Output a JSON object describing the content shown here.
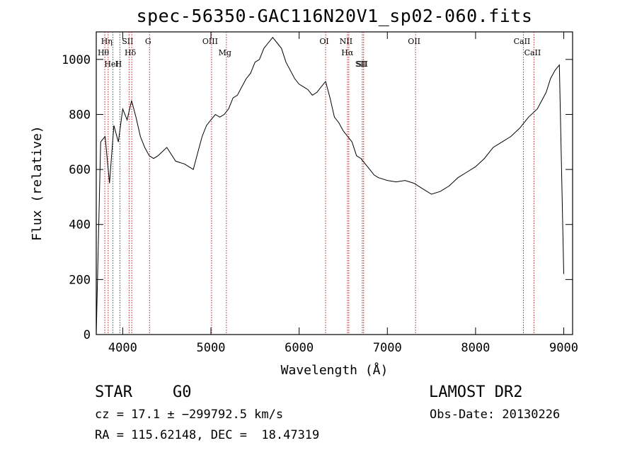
{
  "chart_data": {
    "type": "line",
    "title": "spec-56350-GAC116N20V1_sp02-060.fits",
    "xlabel": "Wavelength (Å)",
    "ylabel": "Flux (relative)",
    "xlim": [
      3700,
      9100
    ],
    "ylim": [
      0,
      1100
    ],
    "xticks": [
      4000,
      5000,
      6000,
      7000,
      8000,
      9000
    ],
    "yticks": [
      0,
      200,
      400,
      600,
      800,
      1000
    ],
    "grid": false,
    "series": [
      {
        "x": [
          3700,
          3750,
          3800,
          3850,
          3900,
          3950,
          4000,
          4050,
          4100,
          4150,
          4200,
          4250,
          4300,
          4350,
          4400,
          4500,
          4600,
          4700,
          4800,
          4850,
          4900,
          4950,
          5000,
          5050,
          5100,
          5150,
          5200,
          5250,
          5300,
          5350,
          5400,
          5450,
          5500,
          5550,
          5600,
          5650,
          5700,
          5750,
          5800,
          5850,
          5900,
          5950,
          6000,
          6050,
          6100,
          6150,
          6200,
          6250,
          6300,
          6350,
          6400,
          6450,
          6500,
          6550,
          6600,
          6650,
          6700,
          6750,
          6800,
          6850,
          6900,
          7000,
          7100,
          7200,
          7300,
          7400,
          7500,
          7600,
          7700,
          7800,
          7900,
          8000,
          8100,
          8200,
          8300,
          8400,
          8500,
          8600,
          8700,
          8800,
          8850,
          8900,
          8950,
          9000
        ],
        "y": [
          0,
          700,
          720,
          550,
          760,
          700,
          820,
          780,
          850,
          790,
          720,
          680,
          650,
          640,
          650,
          680,
          630,
          620,
          600,
          660,
          720,
          760,
          780,
          800,
          790,
          800,
          820,
          860,
          870,
          900,
          930,
          950,
          990,
          1000,
          1040,
          1060,
          1080,
          1060,
          1040,
          990,
          960,
          930,
          910,
          900,
          890,
          870,
          880,
          900,
          920,
          860,
          790,
          770,
          740,
          720,
          700,
          650,
          640,
          620,
          600,
          580,
          570,
          560,
          555,
          560,
          550,
          530,
          510,
          520,
          540,
          570,
          590,
          610,
          640,
          680,
          700,
          720,
          750,
          790,
          820,
          880,
          930,
          960,
          980,
          220
        ]
      }
    ],
    "lines": [
      {
        "label": "Hη",
        "x": 3835
      },
      {
        "label": "Hθ",
        "x": 3797
      },
      {
        "label": "HeI",
        "x": 3889
      },
      {
        "label": "H",
        "x": 3968
      },
      {
        "label": "SII",
        "x": 4072
      },
      {
        "label": "Hδ",
        "x": 4102
      },
      {
        "label": "G",
        "x": 4304
      },
      {
        "label": "OIII",
        "x": 5007
      },
      {
        "label": "Mg",
        "x": 5175
      },
      {
        "label": "OI",
        "x": 6300
      },
      {
        "label": "NII",
        "x": 6548
      },
      {
        "label": "Hα",
        "x": 6563
      },
      {
        "label": "SII",
        "x": 6716
      },
      {
        "label": "SII",
        "x": 6731
      },
      {
        "label": "OII",
        "x": 7320
      },
      {
        "label": "CaII",
        "x": 8542
      },
      {
        "label": "CaII",
        "x": 8662
      }
    ]
  },
  "info": {
    "class": "STAR",
    "subclass": "G0",
    "survey": "LAMOST DR2",
    "cz": "cz = 17.1 ± −299792.5 km/s",
    "obs_date": "Obs-Date: 20130226",
    "radec": "RA = 115.62148, DEC =  18.47319"
  },
  "colors": {
    "spectrum": "#000000",
    "line_marker": "#b22222",
    "frame": "#000000"
  }
}
